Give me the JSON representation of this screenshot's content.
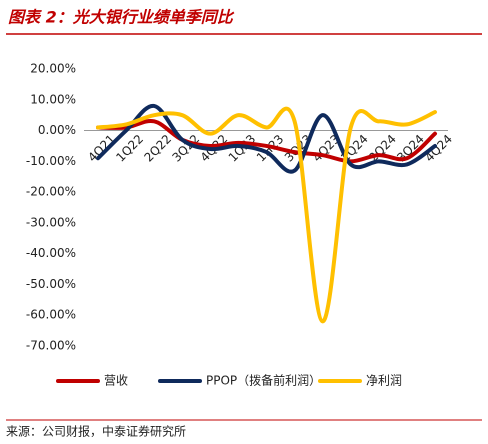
{
  "chart_data": {
    "type": "line",
    "title": "图表 2：光大银行业绩单季同比",
    "source": "来源：公司财报，中泰证券研究所",
    "categories": [
      "4Q21",
      "1Q22",
      "2Q22",
      "3Q22",
      "4Q22",
      "1Q23",
      "1H23",
      "3Q23",
      "4Q23",
      "1Q24",
      "2Q24",
      "3Q24",
      "4Q24"
    ],
    "series": [
      {
        "name": "营收",
        "color": "#c00000",
        "values": [
          1,
          1,
          3,
          -3,
          -5,
          -4,
          -5,
          -7,
          -8,
          -10,
          -8,
          -9,
          -1
        ]
      },
      {
        "name": "PPOP（拨备前利润）",
        "color": "#0f2a5c",
        "values": [
          -9,
          0,
          8,
          -3,
          -6,
          -5,
          -7,
          -13,
          5,
          -11,
          -10,
          -11,
          -5
        ]
      },
      {
        "name": "净利润",
        "color": "#ffc000",
        "values": [
          1,
          2,
          5,
          5,
          -1,
          5,
          1,
          3,
          -62,
          1,
          3,
          2,
          6
        ]
      }
    ],
    "ylim": [
      -70,
      20
    ],
    "yticks": [
      {
        "value": -70,
        "label": "-70.00%"
      },
      {
        "value": -60,
        "label": "-60.00%"
      },
      {
        "value": -50,
        "label": "-50.00%"
      },
      {
        "value": -40,
        "label": "-40.00%"
      },
      {
        "value": -30,
        "label": "-30.00%"
      },
      {
        "value": -20,
        "label": "-20.00%"
      },
      {
        "value": -10,
        "label": "-10.00%"
      },
      {
        "value": 0,
        "label": "0.00%"
      },
      {
        "value": 10,
        "label": "10.00%"
      },
      {
        "value": 20,
        "label": "20.00%"
      }
    ],
    "legend": "bottom"
  }
}
